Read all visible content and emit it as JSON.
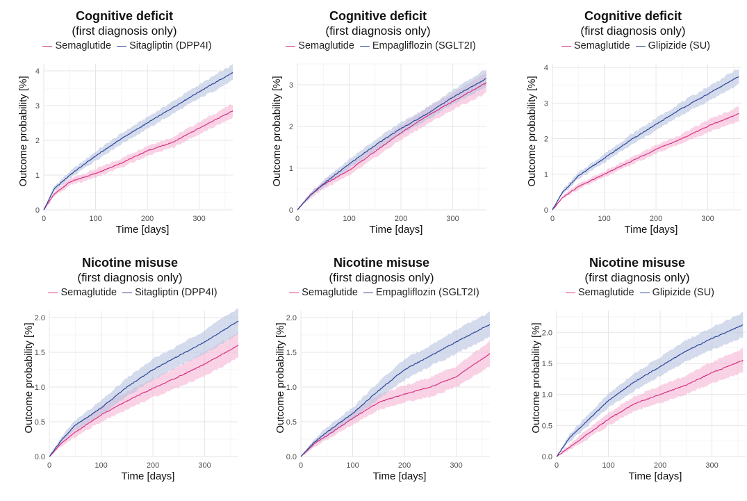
{
  "colors": {
    "semaglutide": "#d63384",
    "semaglutide_band": "#f5b6d4",
    "comparator": "#2e4598",
    "comparator_band": "#b6c3e0"
  },
  "chart_data": [
    {
      "type": "line",
      "title": "Cognitive deficit",
      "subtitle": "(first diagnosis only)",
      "xlabel": "Time [days]",
      "ylabel": "Outcome probability [%]",
      "xlim": [
        0,
        365
      ],
      "ylim": [
        0,
        4.2
      ],
      "xticks": [
        "0",
        "100",
        "200",
        "300"
      ],
      "yticks": [
        "0",
        "1",
        "2",
        "3",
        "4"
      ],
      "legend": "top",
      "grid": true,
      "series": [
        {
          "name": "Semaglutide",
          "color_key": "semaglutide",
          "x": [
            0,
            20,
            50,
            100,
            150,
            200,
            250,
            300,
            365
          ],
          "y": [
            0,
            0.45,
            0.8,
            1.05,
            1.35,
            1.7,
            1.95,
            2.35,
            2.85
          ],
          "lower": [
            0,
            0.38,
            0.7,
            0.93,
            1.22,
            1.55,
            1.8,
            2.17,
            2.65
          ],
          "upper": [
            0,
            0.52,
            0.9,
            1.17,
            1.48,
            1.85,
            2.1,
            2.53,
            3.05
          ]
        },
        {
          "name": "Sitagliptin (DPP4I)",
          "color_key": "comparator",
          "x": [
            0,
            20,
            50,
            100,
            150,
            200,
            250,
            300,
            365
          ],
          "y": [
            0,
            0.6,
            1.0,
            1.55,
            2.05,
            2.5,
            2.95,
            3.4,
            3.95
          ],
          "lower": [
            0,
            0.52,
            0.9,
            1.42,
            1.9,
            2.33,
            2.77,
            3.2,
            3.72
          ],
          "upper": [
            0,
            0.68,
            1.1,
            1.68,
            2.2,
            2.67,
            3.13,
            3.6,
            4.18
          ]
        }
      ]
    },
    {
      "type": "line",
      "title": "Cognitive deficit",
      "subtitle": "(first diagnosis only)",
      "xlabel": "Time [days]",
      "ylabel": "Outcome probability [%]",
      "xlim": [
        0,
        365
      ],
      "ylim": [
        0,
        3.5
      ],
      "xticks": [
        "0",
        "100",
        "200",
        "300"
      ],
      "yticks": [
        "0",
        "1",
        "2",
        "3"
      ],
      "legend": "top",
      "grid": true,
      "series": [
        {
          "name": "Semaglutide",
          "color_key": "semaglutide",
          "x": [
            0,
            25,
            50,
            100,
            150,
            200,
            250,
            300,
            365
          ],
          "y": [
            0,
            0.35,
            0.6,
            0.95,
            1.4,
            1.85,
            2.25,
            2.6,
            3.05
          ],
          "lower": [
            0,
            0.28,
            0.5,
            0.82,
            1.25,
            1.68,
            2.05,
            2.4,
            2.8
          ],
          "upper": [
            0,
            0.42,
            0.7,
            1.08,
            1.55,
            2.02,
            2.45,
            2.8,
            3.3
          ]
        },
        {
          "name": "Empagliflozin (SGLT2I)",
          "color_key": "comparator",
          "x": [
            0,
            25,
            50,
            100,
            150,
            200,
            250,
            300,
            365
          ],
          "y": [
            0,
            0.35,
            0.62,
            1.1,
            1.55,
            1.95,
            2.3,
            2.7,
            3.15
          ],
          "lower": [
            0,
            0.3,
            0.54,
            0.99,
            1.42,
            1.8,
            2.15,
            2.53,
            2.95
          ],
          "upper": [
            0,
            0.4,
            0.7,
            1.21,
            1.68,
            2.1,
            2.45,
            2.87,
            3.38
          ]
        }
      ]
    },
    {
      "type": "line",
      "title": "Cognitive deficit",
      "subtitle": "(first diagnosis only)",
      "xlabel": "Time [days]",
      "ylabel": "Outcome probability [%]",
      "xlim": [
        0,
        365
      ],
      "ylim": [
        0,
        4.1
      ],
      "xticks": [
        "0",
        "100",
        "200",
        "300"
      ],
      "yticks": [
        "0",
        "1",
        "2",
        "3",
        "4"
      ],
      "legend": "top",
      "grid": true,
      "series": [
        {
          "name": "Semaglutide",
          "color_key": "semaglutide",
          "x": [
            0,
            20,
            50,
            100,
            150,
            200,
            250,
            300,
            360
          ],
          "y": [
            0,
            0.35,
            0.65,
            1.0,
            1.35,
            1.7,
            2.0,
            2.35,
            2.7
          ],
          "lower": [
            0,
            0.3,
            0.58,
            0.92,
            1.25,
            1.58,
            1.87,
            2.18,
            2.5
          ],
          "upper": [
            0,
            0.4,
            0.72,
            1.08,
            1.45,
            1.82,
            2.13,
            2.52,
            2.9
          ]
        },
        {
          "name": "Glipizide (SU)",
          "color_key": "comparator",
          "x": [
            0,
            20,
            50,
            100,
            150,
            200,
            250,
            300,
            360
          ],
          "y": [
            0,
            0.5,
            0.95,
            1.45,
            1.95,
            2.4,
            2.85,
            3.25,
            3.75
          ],
          "lower": [
            0,
            0.44,
            0.86,
            1.33,
            1.8,
            2.23,
            2.67,
            3.05,
            3.52
          ],
          "upper": [
            0,
            0.56,
            1.04,
            1.57,
            2.1,
            2.57,
            3.03,
            3.45,
            3.98
          ]
        }
      ]
    },
    {
      "type": "line",
      "title": "Nicotine misuse",
      "subtitle": "(first diagnosis only)",
      "xlabel": "Time [days]",
      "ylabel": "Outcome probability [%]",
      "xlim": [
        0,
        365
      ],
      "ylim": [
        0,
        2.1
      ],
      "xticks": [
        "0",
        "100",
        "200",
        "300"
      ],
      "yticks": [
        "0.0",
        "0.5",
        "1.0",
        "1.5",
        "2.0"
      ],
      "legend": "top",
      "grid": true,
      "series": [
        {
          "name": "Semaglutide",
          "color_key": "semaglutide",
          "x": [
            0,
            25,
            50,
            100,
            150,
            200,
            250,
            300,
            365
          ],
          "y": [
            0,
            0.2,
            0.35,
            0.6,
            0.8,
            0.98,
            1.15,
            1.33,
            1.6
          ],
          "lower": [
            0,
            0.15,
            0.28,
            0.5,
            0.68,
            0.85,
            1.0,
            1.16,
            1.42
          ],
          "upper": [
            0,
            0.25,
            0.42,
            0.72,
            0.93,
            1.12,
            1.3,
            1.5,
            1.78
          ]
        },
        {
          "name": "Sitagliptin (DPP4I)",
          "color_key": "comparator",
          "x": [
            0,
            25,
            50,
            100,
            150,
            200,
            250,
            300,
            365
          ],
          "y": [
            0,
            0.25,
            0.45,
            0.7,
            1.0,
            1.25,
            1.45,
            1.65,
            1.95
          ],
          "lower": [
            0,
            0.2,
            0.38,
            0.6,
            0.87,
            1.1,
            1.3,
            1.48,
            1.76
          ],
          "upper": [
            0,
            0.3,
            0.52,
            0.8,
            1.13,
            1.4,
            1.6,
            1.82,
            2.14
          ]
        }
      ]
    },
    {
      "type": "line",
      "title": "Nicotine misuse",
      "subtitle": "(first diagnosis only)",
      "xlabel": "Time [days]",
      "ylabel": "Outcome probability [%]",
      "xlim": [
        0,
        365
      ],
      "ylim": [
        0,
        2.1
      ],
      "xticks": [
        "0",
        "100",
        "200",
        "300"
      ],
      "yticks": [
        "0.0",
        "0.5",
        "1.0",
        "1.5",
        "2.0"
      ],
      "legend": "top",
      "grid": true,
      "series": [
        {
          "name": "Semaglutide",
          "color_key": "semaglutide",
          "x": [
            0,
            25,
            50,
            100,
            150,
            200,
            250,
            300,
            365
          ],
          "y": [
            0,
            0.18,
            0.3,
            0.55,
            0.78,
            0.9,
            1.0,
            1.15,
            1.48
          ],
          "lower": [
            0,
            0.13,
            0.24,
            0.46,
            0.67,
            0.78,
            0.86,
            1.0,
            1.3
          ],
          "upper": [
            0,
            0.23,
            0.36,
            0.64,
            0.89,
            1.02,
            1.14,
            1.3,
            1.66
          ]
        },
        {
          "name": "Empagliflozin (SGLT2I)",
          "color_key": "comparator",
          "x": [
            0,
            25,
            50,
            100,
            150,
            200,
            250,
            300,
            365
          ],
          "y": [
            0,
            0.2,
            0.35,
            0.62,
            0.95,
            1.25,
            1.45,
            1.65,
            1.9
          ],
          "lower": [
            0,
            0.15,
            0.28,
            0.53,
            0.83,
            1.1,
            1.3,
            1.48,
            1.72
          ],
          "upper": [
            0,
            0.25,
            0.42,
            0.71,
            1.07,
            1.4,
            1.6,
            1.82,
            2.08
          ]
        }
      ]
    },
    {
      "type": "line",
      "title": "Nicotine misuse",
      "subtitle": "(first diagnosis only)",
      "xlabel": "Time [days]",
      "ylabel": "Outcome probability [%]",
      "xlim": [
        0,
        365
      ],
      "ylim": [
        0,
        2.35
      ],
      "xticks": [
        "0",
        "100",
        "200",
        "300"
      ],
      "yticks": [
        "0.0",
        "0.5",
        "1.0",
        "1.5",
        "2.0"
      ],
      "legend": "top",
      "grid": true,
      "series": [
        {
          "name": "Semaglutide",
          "color_key": "semaglutide",
          "x": [
            0,
            25,
            50,
            100,
            150,
            200,
            250,
            300,
            360
          ],
          "y": [
            0,
            0.15,
            0.3,
            0.6,
            0.85,
            1.0,
            1.15,
            1.35,
            1.55
          ],
          "lower": [
            0,
            0.1,
            0.23,
            0.5,
            0.73,
            0.86,
            1.0,
            1.18,
            1.36
          ],
          "upper": [
            0,
            0.2,
            0.37,
            0.7,
            0.97,
            1.14,
            1.3,
            1.52,
            1.74
          ]
        },
        {
          "name": "Glipizide (SU)",
          "color_key": "comparator",
          "x": [
            0,
            25,
            50,
            100,
            150,
            200,
            250,
            300,
            360
          ],
          "y": [
            0,
            0.3,
            0.5,
            0.9,
            1.2,
            1.45,
            1.7,
            1.9,
            2.12
          ],
          "lower": [
            0,
            0.24,
            0.42,
            0.79,
            1.06,
            1.3,
            1.53,
            1.72,
            1.92
          ],
          "upper": [
            0,
            0.36,
            0.58,
            1.01,
            1.34,
            1.6,
            1.87,
            2.08,
            2.32
          ]
        }
      ]
    }
  ]
}
